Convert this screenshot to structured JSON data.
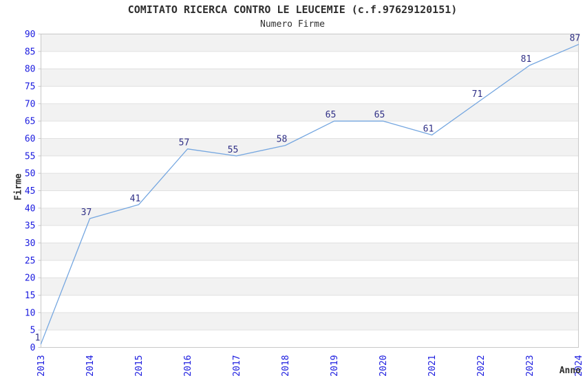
{
  "chart_data": {
    "type": "line",
    "title": "COMITATO RICERCA CONTRO LE LEUCEMIE (c.f.97629120151)",
    "subtitle": "Numero Firme",
    "xlabel": "Anno",
    "ylabel": "Firme",
    "categories": [
      "2013",
      "2014",
      "2015",
      "2016",
      "2017",
      "2018",
      "2019",
      "2020",
      "2021",
      "2022",
      "2023",
      "2024"
    ],
    "values": [
      1,
      37,
      41,
      57,
      55,
      58,
      65,
      65,
      61,
      71,
      81,
      87
    ],
    "ylim": [
      0,
      90
    ],
    "ytick_step": 5,
    "grid": "horizontal-bands-alternating",
    "legend": "none",
    "colors": {
      "line": "#74a6e0",
      "point_label": "#2f2f86",
      "tick_label": "#1a1adf",
      "band_fill": "#f2f2f2",
      "band_alt_fill": "#ffffff",
      "grid_line": "#e0e0e0",
      "border": "#c8c8c8",
      "text": "#2e2e2e",
      "background": "#ffffff"
    }
  }
}
